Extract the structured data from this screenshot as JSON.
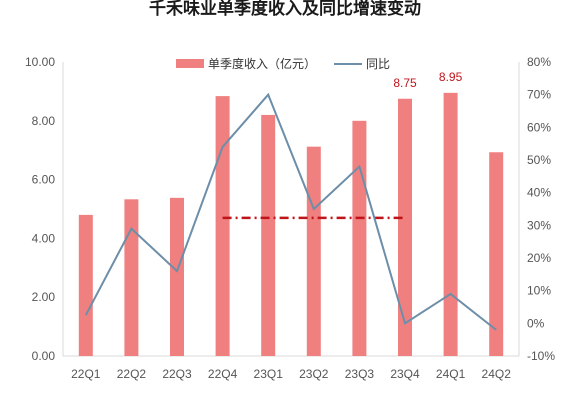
{
  "chart_data": {
    "type": "bar",
    "title": "千禾味业单季度收入及同比增速变动",
    "categories": [
      "22Q1",
      "22Q2",
      "22Q3",
      "22Q4",
      "23Q1",
      "23Q2",
      "23Q3",
      "23Q4",
      "24Q1",
      "24Q2"
    ],
    "series": [
      {
        "name": "单季度收入（亿元）",
        "type": "bar",
        "axis": "left",
        "color": "#f08080",
        "values": [
          4.8,
          5.33,
          5.38,
          8.84,
          8.2,
          7.12,
          8.0,
          8.75,
          8.95,
          6.93
        ]
      },
      {
        "name": "同比",
        "type": "line",
        "axis": "right",
        "color": "#6d8ea8",
        "values": [
          2.5,
          29,
          16,
          54,
          70,
          35,
          48,
          0,
          9,
          -2
        ]
      }
    ],
    "data_labels": [
      {
        "index": 7,
        "text": "8.75"
      },
      {
        "index": 8,
        "text": "8.95"
      }
    ],
    "reference_line": {
      "value": 4.7,
      "from_index": 3,
      "to_index": 7,
      "style": "dash-dot",
      "color": "#c0141a"
    },
    "y_left": {
      "ylim": [
        0,
        10
      ],
      "ticks": [
        "0.00",
        "2.00",
        "4.00",
        "6.00",
        "8.00",
        "10.00"
      ]
    },
    "y_right": {
      "ylim": [
        -10,
        80
      ],
      "ticks": [
        "-10%",
        "0%",
        "10%",
        "20%",
        "30%",
        "40%",
        "50%",
        "60%",
        "70%",
        "80%"
      ]
    },
    "legend_position": "top-center",
    "grid": false
  }
}
